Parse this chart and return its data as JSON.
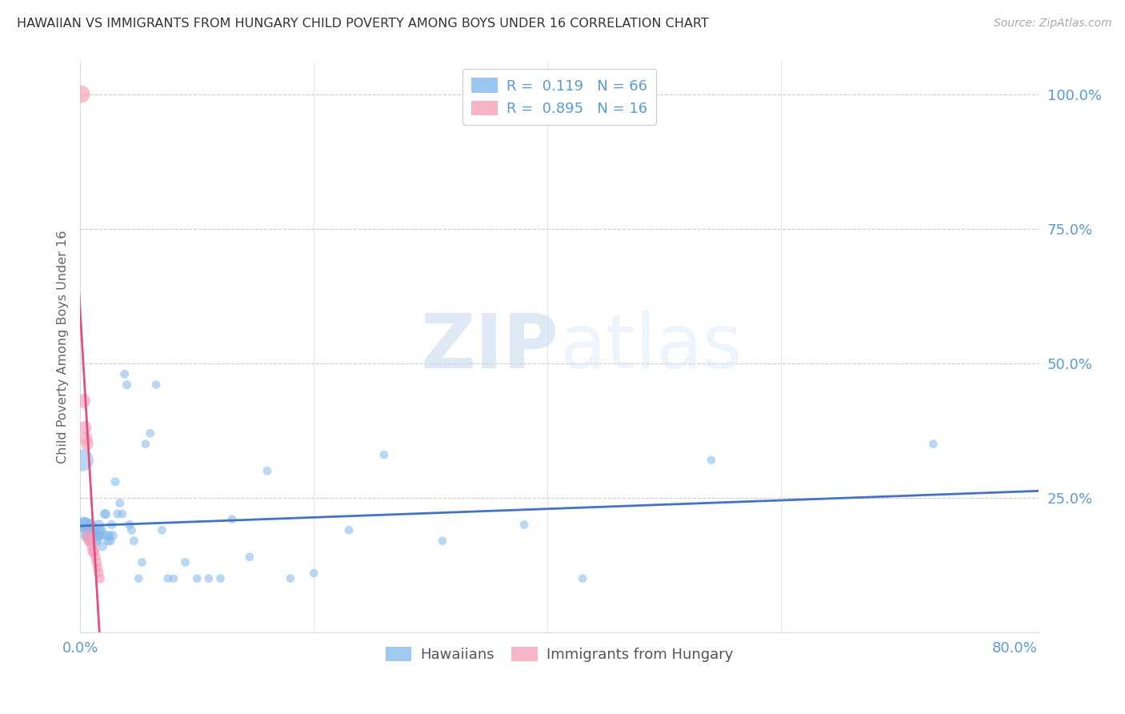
{
  "title": "HAWAIIAN VS IMMIGRANTS FROM HUNGARY CHILD POVERTY AMONG BOYS UNDER 16 CORRELATION CHART",
  "source": "Source: ZipAtlas.com",
  "ylabel": "Child Poverty Among Boys Under 16",
  "hawaiian_color": "#82b8ec",
  "hungary_color": "#f4a0b8",
  "line_hawaiian_color": "#4472c4",
  "line_hungary_color": "#e05080",
  "R_hawaiian": 0.119,
  "N_hawaiian": 66,
  "R_hungary": 0.895,
  "N_hungary": 16,
  "hawaiian_x": [
    0.002,
    0.003,
    0.004,
    0.005,
    0.006,
    0.007,
    0.008,
    0.009,
    0.01,
    0.01,
    0.011,
    0.011,
    0.012,
    0.012,
    0.013,
    0.013,
    0.014,
    0.015,
    0.015,
    0.016,
    0.016,
    0.017,
    0.018,
    0.019,
    0.02,
    0.021,
    0.022,
    0.023,
    0.024,
    0.025,
    0.026,
    0.027,
    0.028,
    0.03,
    0.032,
    0.034,
    0.036,
    0.038,
    0.04,
    0.042,
    0.044,
    0.046,
    0.05,
    0.053,
    0.056,
    0.06,
    0.065,
    0.07,
    0.075,
    0.08,
    0.09,
    0.1,
    0.11,
    0.12,
    0.13,
    0.145,
    0.16,
    0.18,
    0.2,
    0.23,
    0.26,
    0.31,
    0.38,
    0.43,
    0.54,
    0.73
  ],
  "hawaiian_y": [
    0.32,
    0.2,
    0.2,
    0.2,
    0.18,
    0.18,
    0.19,
    0.2,
    0.19,
    0.18,
    0.18,
    0.19,
    0.18,
    0.18,
    0.17,
    0.18,
    0.17,
    0.18,
    0.18,
    0.2,
    0.18,
    0.19,
    0.19,
    0.16,
    0.18,
    0.22,
    0.22,
    0.18,
    0.17,
    0.18,
    0.17,
    0.2,
    0.18,
    0.28,
    0.22,
    0.24,
    0.22,
    0.48,
    0.46,
    0.2,
    0.19,
    0.17,
    0.1,
    0.13,
    0.35,
    0.37,
    0.46,
    0.19,
    0.1,
    0.1,
    0.13,
    0.1,
    0.1,
    0.1,
    0.21,
    0.14,
    0.3,
    0.1,
    0.11,
    0.19,
    0.33,
    0.17,
    0.2,
    0.1,
    0.32,
    0.35
  ],
  "hawaii_sizes": [
    400,
    200,
    180,
    160,
    150,
    140,
    130,
    120,
    110,
    110,
    100,
    100,
    100,
    100,
    95,
    95,
    90,
    90,
    90,
    85,
    85,
    80,
    80,
    80,
    75,
    75,
    75,
    75,
    70,
    70,
    70,
    70,
    70,
    65,
    65,
    65,
    65,
    65,
    65,
    65,
    65,
    65,
    60,
    60,
    60,
    60,
    60,
    60,
    60,
    60,
    60,
    60,
    60,
    60,
    60,
    60,
    60,
    60,
    60,
    60,
    60,
    60,
    60,
    60,
    60,
    60
  ],
  "hungary_x": [
    0.001,
    0.003,
    0.004,
    0.005,
    0.006,
    0.007,
    0.008,
    0.009,
    0.01,
    0.011,
    0.012,
    0.013,
    0.014,
    0.015,
    0.016,
    0.017
  ],
  "hungary_y": [
    1.0,
    0.43,
    0.38,
    0.36,
    0.35,
    0.18,
    0.17,
    0.17,
    0.16,
    0.15,
    0.15,
    0.14,
    0.13,
    0.12,
    0.11,
    0.1
  ],
  "hungary_sizes": [
    250,
    160,
    150,
    140,
    130,
    120,
    110,
    110,
    100,
    100,
    95,
    90,
    85,
    80,
    80,
    75
  ],
  "xmin": 0.0,
  "xmax": 0.82,
  "ymin": 0.0,
  "ymax": 1.06,
  "yticks": [
    0.0,
    0.25,
    0.5,
    0.75,
    1.0
  ],
  "ytick_labels": [
    "",
    "25.0%",
    "50.0%",
    "75.0%",
    "100.0%"
  ],
  "xtick_positions": [
    0.0,
    0.8
  ],
  "xtick_labels": [
    "0.0%",
    "80.0%"
  ],
  "watermark_zip": "ZIP",
  "watermark_atlas": "atlas",
  "grid_color": "#cccccc",
  "bg_color": "#ffffff"
}
